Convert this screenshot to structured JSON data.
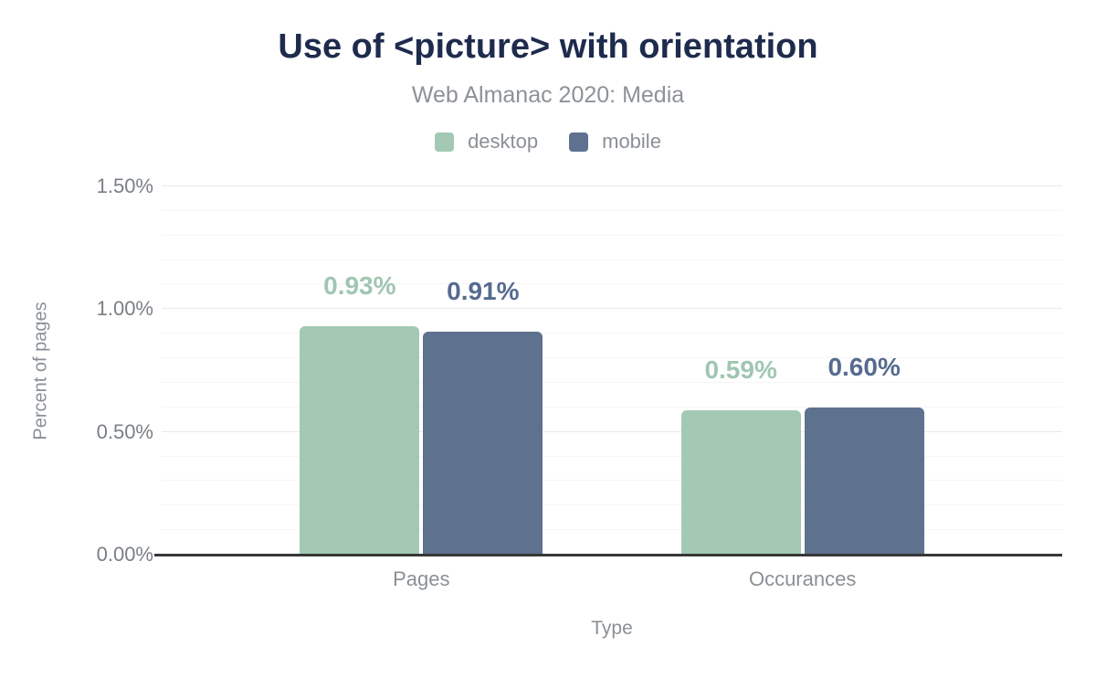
{
  "chart_data": {
    "type": "bar",
    "title": "Use of <picture> with orientation",
    "subtitle": "Web Almanac 2020: Media",
    "xlabel": "Type",
    "ylabel": "Percent of pages",
    "categories": [
      "Pages",
      "Occurances"
    ],
    "series": [
      {
        "name": "desktop",
        "color": "#a3c9b5",
        "label_color": "#a0c6b2",
        "values": [
          0.93,
          0.59
        ],
        "labels": [
          "0.93%",
          "0.59%"
        ]
      },
      {
        "name": "mobile",
        "color": "#5e718e",
        "label_color": "#566b8f",
        "values": [
          0.91,
          0.6
        ],
        "labels": [
          "0.91%",
          "0.60%"
        ]
      }
    ],
    "y_axis": {
      "min": 0,
      "max": 1.5,
      "major_step": 0.5,
      "minor_step": 0.1,
      "tick_values": [
        0,
        0.5,
        1.0,
        1.5
      ],
      "tick_labels": [
        "0.00%",
        "0.50%",
        "1.00%",
        "1.50%"
      ]
    },
    "legend_position": "top",
    "grid": true,
    "colors": {
      "title": "#1e2b4d",
      "subtitle": "#8d9297",
      "axis_text": "#8a9096",
      "gridline_minor": "#f5f5f5",
      "gridline_major": "#e9e9e9",
      "baseline": "#373737"
    }
  }
}
